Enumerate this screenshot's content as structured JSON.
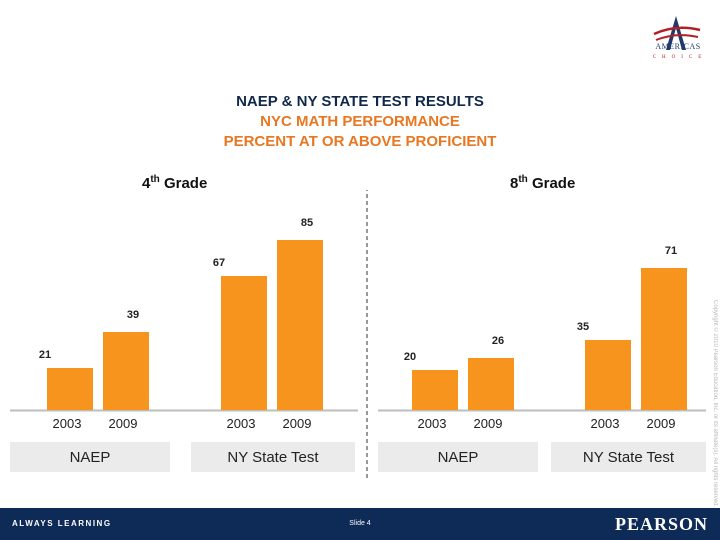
{
  "logo": {
    "word": "AMERICAS",
    "sub": "CHOICE"
  },
  "title": {
    "line1": "NAEP & NY STATE TEST RESULTS",
    "line2": "NYC MATH PERFORMANCE",
    "line3": "PERCENT AT OR ABOVE PROFICIENT"
  },
  "grades": {
    "left": {
      "base": "4",
      "sup": "th",
      "rest": " Grade"
    },
    "right": {
      "base": "8",
      "sup": "th",
      "rest": " Grade"
    }
  },
  "colors": {
    "bar": "#f7941d",
    "title_dark": "#12284a",
    "title_orange": "#e87722",
    "group_box": "#ebebeb"
  },
  "chart_data": {
    "type": "bar",
    "title": "NAEP & NY STATE TEST RESULTS NYC MATH PERFORMANCE PERCENT AT OR ABOVE PROFICIENT",
    "ylim": [
      0,
      100
    ],
    "grid": false,
    "panels": [
      {
        "label": "4th Grade",
        "groups": [
          {
            "name": "NAEP",
            "categories": [
              "2003",
              "2009"
            ],
            "values": [
              21,
              39
            ]
          },
          {
            "name": "NY State Test",
            "categories": [
              "2003",
              "2009"
            ],
            "values": [
              67,
              85
            ]
          }
        ]
      },
      {
        "label": "8th Grade",
        "groups": [
          {
            "name": "NAEP",
            "categories": [
              "2003",
              "2009"
            ],
            "values": [
              20,
              26
            ]
          },
          {
            "name": "NY State Test",
            "categories": [
              "2003",
              "2009"
            ],
            "values": [
              35,
              71
            ]
          }
        ]
      }
    ]
  },
  "copyright": "Copyright © 2010 Pearson Education, Inc. or its affiliate(s). All rights reserved.",
  "footer": {
    "left": "ALWAYS LEARNING",
    "slide": "Slide 4",
    "brand": "PEARSON"
  }
}
